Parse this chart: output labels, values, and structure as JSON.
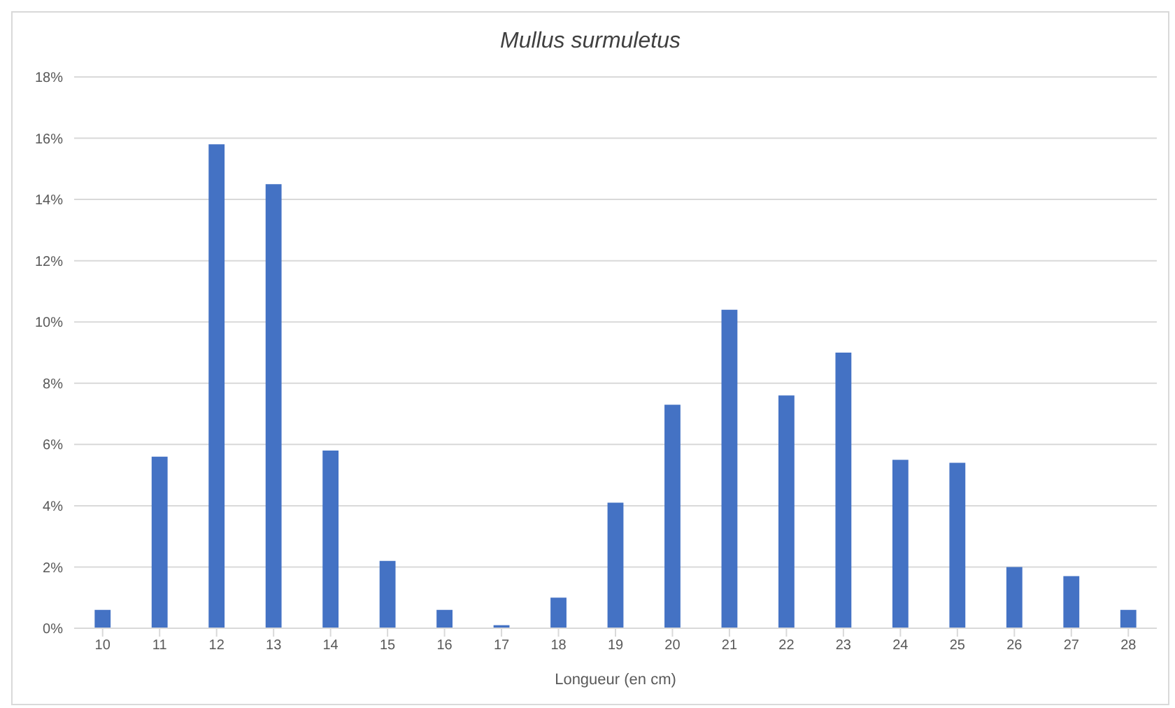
{
  "chart_data": {
    "type": "bar",
    "title": "Mullus surmuletus",
    "xlabel": "Longueur (en cm)",
    "categories": [
      "10",
      "11",
      "12",
      "13",
      "14",
      "15",
      "16",
      "17",
      "18",
      "19",
      "20",
      "21",
      "22",
      "23",
      "24",
      "25",
      "26",
      "27",
      "28"
    ],
    "values": [
      0.6,
      5.6,
      15.8,
      14.5,
      5.8,
      2.2,
      0.6,
      0.1,
      1.0,
      4.1,
      7.3,
      10.4,
      7.6,
      9.0,
      5.5,
      5.4,
      2.0,
      1.7,
      0.6
    ],
    "color": "#4472c4",
    "ylim": [
      0,
      18
    ],
    "yticks": [
      {
        "value": 0,
        "label": "0%"
      },
      {
        "value": 2,
        "label": "2%"
      },
      {
        "value": 4,
        "label": "4%"
      },
      {
        "value": 6,
        "label": "6%"
      },
      {
        "value": 8,
        "label": "8%"
      },
      {
        "value": 10,
        "label": "10%"
      },
      {
        "value": 12,
        "label": "12%"
      },
      {
        "value": 14,
        "label": "14%"
      },
      {
        "value": 16,
        "label": "16%"
      },
      {
        "value": 18,
        "label": "18%"
      }
    ],
    "grid": "y",
    "legend": false
  }
}
